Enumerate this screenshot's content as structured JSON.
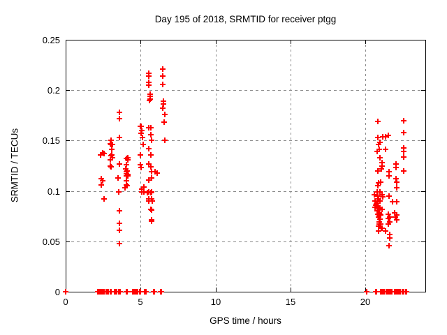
{
  "chart_data": {
    "type": "scatter",
    "title": "Day 195 of 2018, SRMTID for receiver ptgg",
    "xlabel": "GPS time / hours",
    "ylabel": "SRMTID / TECUs",
    "xlim": [
      0,
      24
    ],
    "ylim": [
      0,
      0.25
    ],
    "xticks": [
      0,
      5,
      10,
      15,
      20
    ],
    "xticklabels": [
      "0",
      "5",
      "10",
      "15",
      "20"
    ],
    "yticks": [
      0,
      0.05,
      0.1,
      0.15,
      0.2,
      0.25
    ],
    "yticklabels": [
      "0",
      "0.05",
      "0.1",
      "0.15",
      "0.2",
      "0.25"
    ],
    "grid": true,
    "legend_position": "none",
    "colors": {
      "marker": "#ff0000",
      "grid": "#8a8a8a",
      "axis": "#000000",
      "background": "#ffffff"
    },
    "series": [
      {
        "name": "SRMTID",
        "marker": "plus",
        "color": "#ff0000",
        "points": [
          [
            2.33,
            0.136
          ],
          [
            2.36,
            0.112
          ],
          [
            2.36,
            0.106
          ],
          [
            2.46,
            0.138
          ],
          [
            2.48,
            0.11
          ],
          [
            2.56,
            0.092
          ],
          [
            2.58,
            0.137
          ],
          [
            2.98,
            0.125
          ],
          [
            3.0,
            0.131
          ],
          [
            3.0,
            0.147
          ],
          [
            3.05,
            0.146
          ],
          [
            3.04,
            0.15
          ],
          [
            3.04,
            0.135
          ],
          [
            3.04,
            0.124
          ],
          [
            3.06,
            0.141
          ],
          [
            3.06,
            0.136
          ],
          [
            3.11,
            0.146
          ],
          [
            3.11,
            0.133
          ],
          [
            3.51,
            0.113
          ],
          [
            3.54,
            0.099
          ],
          [
            3.57,
            0.178
          ],
          [
            3.57,
            0.172
          ],
          [
            3.57,
            0.153
          ],
          [
            3.57,
            0.08
          ],
          [
            3.57,
            0.068
          ],
          [
            3.57,
            0.061
          ],
          [
            3.57,
            0.048
          ],
          [
            3.61,
            0.127
          ],
          [
            3.97,
            0.103
          ],
          [
            3.99,
            0.122
          ],
          [
            4.04,
            0.132
          ],
          [
            4.04,
            0.126
          ],
          [
            4.04,
            0.119
          ],
          [
            4.04,
            0.115
          ],
          [
            4.04,
            0.11
          ],
          [
            4.07,
            0.132
          ],
          [
            4.07,
            0.117
          ],
          [
            4.07,
            0.106
          ],
          [
            4.09,
            0.12
          ],
          [
            4.09,
            0.105
          ],
          [
            4.13,
            0.131
          ],
          [
            4.13,
            0.116
          ],
          [
            4.15,
            0.133
          ],
          [
            4.15,
            0.115
          ],
          [
            4.99,
            0.164
          ],
          [
            5.03,
            0.164
          ],
          [
            5.0,
            0.136
          ],
          [
            5.0,
            0.126
          ],
          [
            5.02,
            0.157
          ],
          [
            5.02,
            0.123
          ],
          [
            5.06,
            0.102
          ],
          [
            5.06,
            0.099
          ],
          [
            5.08,
            0.16
          ],
          [
            5.13,
            0.153
          ],
          [
            5.19,
            0.146
          ],
          [
            5.22,
            0.104
          ],
          [
            5.23,
            0.099
          ],
          [
            5.45,
            0.098
          ],
          [
            5.53,
            0.163
          ],
          [
            5.53,
            0.142
          ],
          [
            5.53,
            0.099
          ],
          [
            5.53,
            0.092
          ],
          [
            5.56,
            0.217
          ],
          [
            5.56,
            0.214
          ],
          [
            5.56,
            0.208
          ],
          [
            5.56,
            0.205
          ],
          [
            5.56,
            0.127
          ],
          [
            5.56,
            0.111
          ],
          [
            5.56,
            0.09
          ],
          [
            5.61,
            0.19
          ],
          [
            5.64,
            0.196
          ],
          [
            5.66,
            0.194
          ],
          [
            5.64,
            0.191
          ],
          [
            5.67,
            0.082
          ],
          [
            5.69,
            0.163
          ],
          [
            5.69,
            0.156
          ],
          [
            5.69,
            0.136
          ],
          [
            5.69,
            0.124
          ],
          [
            5.69,
            0.098
          ],
          [
            5.71,
            0.113
          ],
          [
            5.71,
            0.099
          ],
          [
            5.71,
            0.092
          ],
          [
            5.72,
            0.071
          ],
          [
            5.74,
            0.07
          ],
          [
            5.75,
            0.15
          ],
          [
            5.75,
            0.119
          ],
          [
            5.75,
            0.081
          ],
          [
            5.76,
            0.09
          ],
          [
            5.95,
            0.119
          ],
          [
            6.1,
            0.118
          ],
          [
            6.46,
            0.221
          ],
          [
            6.46,
            0.214
          ],
          [
            6.46,
            0.206
          ],
          [
            6.49,
            0.182
          ],
          [
            6.52,
            0.189
          ],
          [
            6.52,
            0.186
          ],
          [
            6.58,
            0.168
          ],
          [
            6.62,
            0.176
          ],
          [
            6.62,
            0.15
          ],
          [
            20.6,
            0.096
          ],
          [
            20.63,
            0.09
          ],
          [
            20.65,
            0.084
          ],
          [
            20.7,
            0.086
          ],
          [
            20.72,
            0.087
          ],
          [
            20.78,
            0.139
          ],
          [
            20.78,
            0.099
          ],
          [
            20.78,
            0.083
          ],
          [
            20.78,
            0.08
          ],
          [
            20.81,
            0.095
          ],
          [
            20.83,
            0.169
          ],
          [
            20.83,
            0.153
          ],
          [
            20.83,
            0.12
          ],
          [
            20.83,
            0.105
          ],
          [
            20.83,
            0.089
          ],
          [
            20.83,
            0.077
          ],
          [
            20.86,
            0.108
          ],
          [
            20.86,
            0.092
          ],
          [
            20.86,
            0.083
          ],
          [
            20.86,
            0.074
          ],
          [
            20.86,
            0.065
          ],
          [
            20.86,
            0.06
          ],
          [
            20.89,
            0.146
          ],
          [
            20.91,
            0.078
          ],
          [
            20.91,
            0.069
          ],
          [
            20.94,
            0.141
          ],
          [
            20.94,
            0.076
          ],
          [
            20.94,
            0.067
          ],
          [
            20.97,
            0.099
          ],
          [
            20.97,
            0.077
          ],
          [
            20.97,
            0.072
          ],
          [
            20.99,
            0.148
          ],
          [
            20.99,
            0.133
          ],
          [
            20.99,
            0.09
          ],
          [
            20.99,
            0.083
          ],
          [
            20.99,
            0.065
          ],
          [
            21.02,
            0.109
          ],
          [
            21.02,
            0.076
          ],
          [
            21.02,
            0.067
          ],
          [
            21.05,
            0.122
          ],
          [
            21.05,
            0.063
          ],
          [
            21.09,
            0.128
          ],
          [
            21.09,
            0.082
          ],
          [
            21.09,
            0.063
          ],
          [
            21.13,
            0.125
          ],
          [
            21.13,
            0.096
          ],
          [
            21.17,
            0.154
          ],
          [
            21.17,
            0.094
          ],
          [
            21.33,
            0.06
          ],
          [
            21.35,
            0.154
          ],
          [
            21.35,
            0.141
          ],
          [
            21.51,
            0.155
          ],
          [
            21.51,
            0.067
          ],
          [
            21.53,
            0.077
          ],
          [
            21.53,
            0.073
          ],
          [
            21.56,
            0.119
          ],
          [
            21.56,
            0.115
          ],
          [
            21.56,
            0.095
          ],
          [
            21.56,
            0.046
          ],
          [
            21.6,
            0.057
          ],
          [
            21.6,
            0.053
          ],
          [
            21.63,
            0.074
          ],
          [
            21.63,
            0.069
          ],
          [
            21.79,
            0.089
          ],
          [
            21.95,
            0.078
          ],
          [
            22.0,
            0.074
          ],
          [
            22.02,
            0.127
          ],
          [
            22.02,
            0.123
          ],
          [
            22.02,
            0.112
          ],
          [
            22.07,
            0.109
          ],
          [
            22.07,
            0.089
          ],
          [
            22.07,
            0.076
          ],
          [
            22.07,
            0.071
          ],
          [
            22.1,
            0.103
          ],
          [
            22.54,
            0.17
          ],
          [
            22.54,
            0.158
          ],
          [
            22.54,
            0.12
          ],
          [
            22.57,
            0.143
          ],
          [
            22.57,
            0.139
          ],
          [
            22.57,
            0.134
          ],
          [
            0.0,
            0
          ],
          [
            2.13,
            0
          ],
          [
            2.22,
            0
          ],
          [
            2.33,
            0
          ],
          [
            2.42,
            0
          ],
          [
            2.5,
            0
          ],
          [
            2.56,
            0
          ],
          [
            2.72,
            0
          ],
          [
            2.78,
            0
          ],
          [
            2.84,
            0
          ],
          [
            2.99,
            0
          ],
          [
            3.05,
            0
          ],
          [
            3.28,
            0
          ],
          [
            3.34,
            0
          ],
          [
            3.42,
            0
          ],
          [
            3.52,
            0
          ],
          [
            3.58,
            0
          ],
          [
            3.64,
            0
          ],
          [
            4.06,
            0
          ],
          [
            4.12,
            0
          ],
          [
            4.46,
            0
          ],
          [
            4.52,
            0
          ],
          [
            4.58,
            0
          ],
          [
            4.64,
            0
          ],
          [
            4.74,
            0
          ],
          [
            4.8,
            0
          ],
          [
            4.94,
            0
          ],
          [
            5.0,
            0
          ],
          [
            5.28,
            0
          ],
          [
            5.34,
            0
          ],
          [
            5.88,
            0
          ],
          [
            5.94,
            0
          ],
          [
            6.32,
            0
          ],
          [
            6.4,
            0
          ],
          [
            20.1,
            0
          ],
          [
            20.68,
            0
          ],
          [
            20.74,
            0
          ],
          [
            21.0,
            0
          ],
          [
            21.06,
            0
          ],
          [
            21.18,
            0
          ],
          [
            21.24,
            0
          ],
          [
            21.38,
            0
          ],
          [
            21.44,
            0
          ],
          [
            21.54,
            0
          ],
          [
            21.6,
            0
          ],
          [
            21.7,
            0
          ],
          [
            21.76,
            0
          ],
          [
            21.94,
            0
          ],
          [
            22.0,
            0
          ],
          [
            22.1,
            0
          ],
          [
            22.16,
            0
          ],
          [
            22.28,
            0
          ],
          [
            22.34,
            0
          ],
          [
            22.48,
            0
          ],
          [
            22.54,
            0
          ],
          [
            22.68,
            0
          ],
          [
            22.76,
            0
          ]
        ]
      }
    ]
  }
}
